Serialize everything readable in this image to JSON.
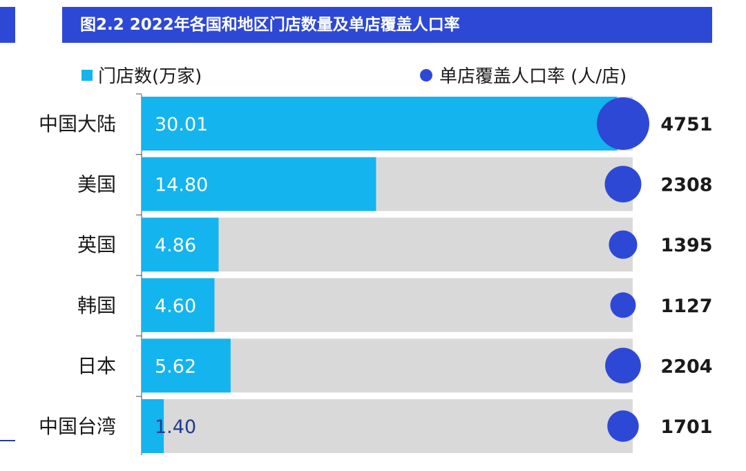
{
  "title": "图2.2 2022年各国和地区门店数量及单店覆盖人口率",
  "legend": {
    "bar_label": "门店数(万家)",
    "circle_label": "单店覆盖人口率 (人/店)"
  },
  "colors": {
    "bar": "#14b4ee",
    "track": "#d9d9d9",
    "circle": "#2e48d6",
    "header": "#2e48d6"
  },
  "chart_data": {
    "type": "bar",
    "categories": [
      "中国大陆",
      "美国",
      "英国",
      "韩国",
      "日本",
      "中国台湾"
    ],
    "series": [
      {
        "name": "门店数(万家)",
        "values": [
          30.01,
          14.8,
          4.86,
          4.6,
          5.62,
          1.4
        ],
        "labels": [
          "30.01",
          "14.80",
          "4.86",
          "4.60",
          "5.62",
          "1.40"
        ]
      },
      {
        "name": "单店覆盖人口率 (人/店)",
        "values": [
          4751,
          2308,
          1395,
          1127,
          2204,
          1701
        ],
        "labels": [
          "4751",
          "2308",
          "1395",
          "1127",
          "2204",
          "1701"
        ]
      }
    ],
    "bar_axis_max": 31,
    "legend_position": "top"
  }
}
